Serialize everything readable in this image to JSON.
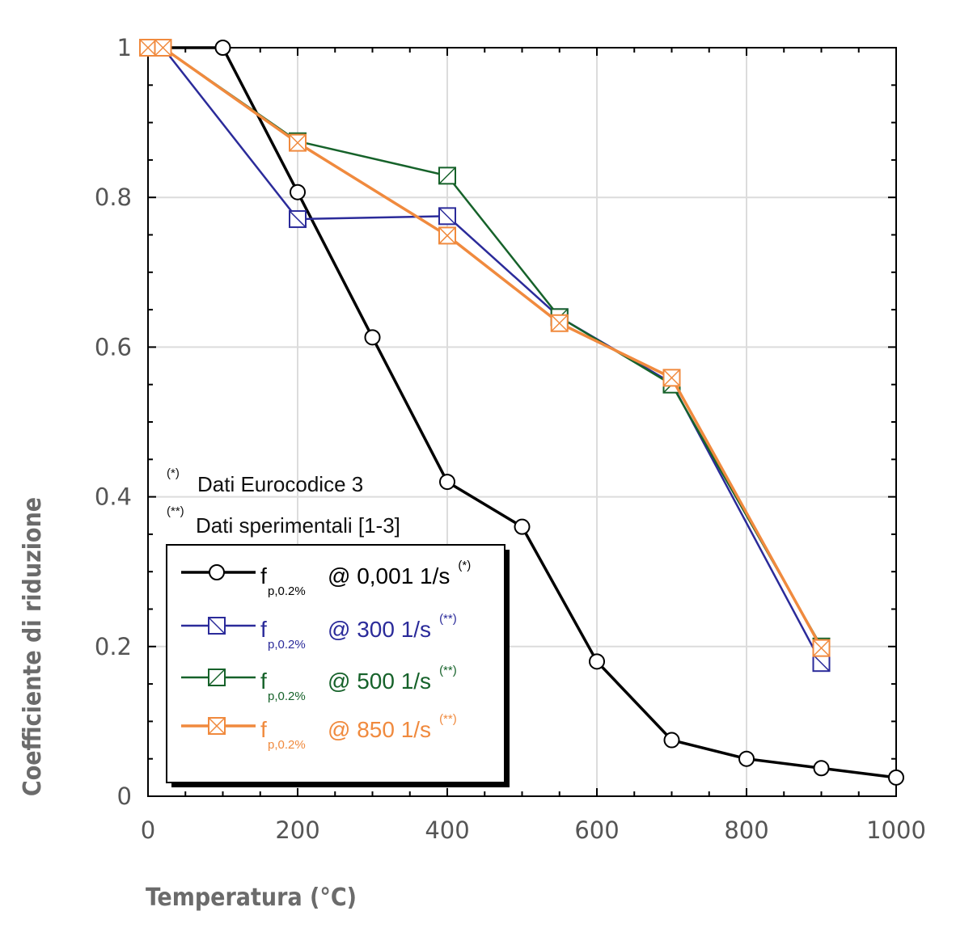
{
  "chart_data": {
    "type": "line",
    "xlabel": "Temperatura (°C)",
    "ylabel": "Coefficiente di riduzione",
    "xlim": [
      0,
      1000
    ],
    "ylim": [
      0,
      1
    ],
    "x_ticks": [
      "0",
      "200",
      "400",
      "600",
      "800",
      "1000"
    ],
    "y_ticks": [
      "0",
      "0.2",
      "0.4",
      "0.6",
      "0.8",
      "1"
    ],
    "grid": true,
    "legend_position": "bottom-left",
    "notes": [
      {
        "mark": "(*)",
        "text": "Dati Eurocodice 3"
      },
      {
        "mark": "(**)",
        "text": "Dati sperimentali [1-3]"
      }
    ],
    "series": [
      {
        "label_main": "f",
        "label_sub": "p,0.2%",
        "label_rest": "@ 0,001 1/s",
        "label_sup": "(*)",
        "color": "#000000",
        "marker": "circle",
        "x": [
          0,
          100,
          200,
          300,
          400,
          500,
          600,
          700,
          800,
          900,
          1000
        ],
        "y": [
          1,
          1,
          0.807,
          0.613,
          0.42,
          0.36,
          0.18,
          0.075,
          0.05,
          0.0375,
          0.025
        ]
      },
      {
        "label_main": "f",
        "label_sub": "p,0.2%",
        "label_rest": "@ 300 1/s",
        "label_sup": "(**)",
        "color": "#2b2b9a",
        "marker": "square-backslash",
        "x": [
          0,
          20,
          200,
          400,
          550,
          700,
          900
        ],
        "y": [
          1,
          1,
          0.771,
          0.775,
          0.64,
          0.552,
          0.178
        ]
      },
      {
        "label_main": "f",
        "label_sub": "p,0.2%",
        "label_rest": "@ 500 1/s",
        "label_sup": "(**)",
        "color": "#16622a",
        "marker": "square-slash",
        "x": [
          0,
          20,
          200,
          400,
          550,
          700,
          900
        ],
        "y": [
          1,
          1,
          0.875,
          0.829,
          0.64,
          0.55,
          0.2
        ]
      },
      {
        "label_main": "f",
        "label_sub": "p,0.2%",
        "label_rest": "@ 850 1/s",
        "label_sup": "(**)",
        "color": "#f08a3e",
        "marker": "square-x",
        "x": [
          0,
          20,
          200,
          400,
          550,
          700,
          900
        ],
        "y": [
          1,
          1,
          0.873,
          0.749,
          0.632,
          0.559,
          0.198
        ]
      }
    ]
  }
}
